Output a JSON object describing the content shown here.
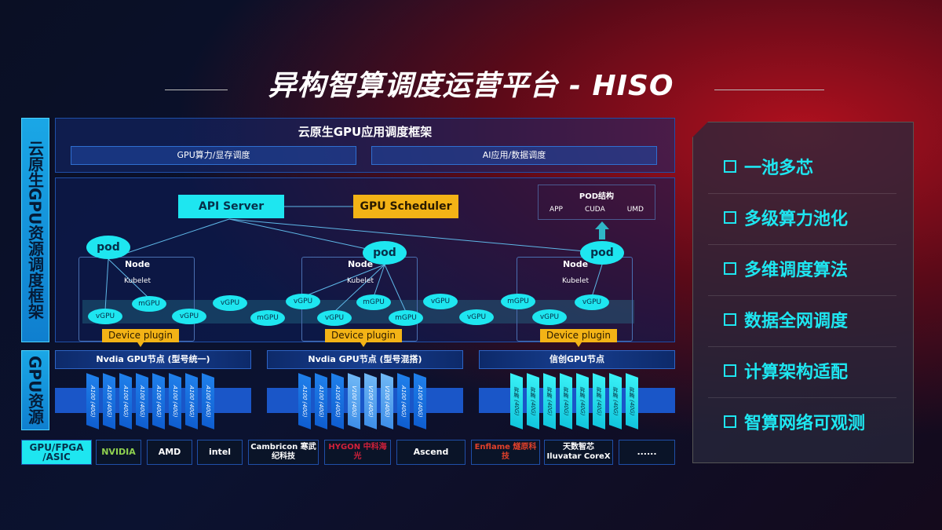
{
  "title": "异构智算调度运营平台 - HISO",
  "side_labels": {
    "top": "云原生GPU资源调度框架",
    "bottom": "GPU资源",
    "vendor": "GPU/FPGA /ASIC"
  },
  "framework": {
    "title": "云原生GPU应用调度框架",
    "bars": [
      "GPU算力/显存调度",
      "AI应用/数据调度"
    ]
  },
  "api_server": "API Server",
  "gpu_scheduler": "GPU Scheduler",
  "pod_structure": {
    "title": "POD结构",
    "items": [
      "APP",
      "CUDA",
      "UMD"
    ]
  },
  "pod_label": "pod",
  "node_label": "Node",
  "kubelet_label": "Kubelet",
  "device_plugin": "Device plugin",
  "gpu_units": [
    "vGPU",
    "mGPU",
    "vGPU",
    "vGPU",
    "mGPU",
    "vGPU",
    "vGPU",
    "mGPU",
    "mGPU",
    "vGPU",
    "vGPU",
    "mGPU",
    "vGPU",
    "vGPU"
  ],
  "gpu_nodes": [
    {
      "title": "Nvdia GPU节点 (型号统一)",
      "cards": [
        "A100 (40G)",
        "A100 (40G)",
        "A100 (40G)",
        "A100 (40G)",
        "A100 (40G)",
        "A100 (40G)",
        "A100 (40G)",
        "A100 (40G)"
      ]
    },
    {
      "title": "Nvdia GPU节点 (型号混搭)",
      "cards": [
        "A100 (40G)",
        "A100 (40G)",
        "A100 (40G)",
        "V100 (40G)",
        "V100 (40G)",
        "V100 (40G)",
        "A100 (40G)",
        "A100 (40G)"
      ]
    },
    {
      "title": "信创GPU节点",
      "cards": [
        "昇腾 (40G)",
        "昇腾 (40G)",
        "昇腾 (40G)",
        "昇腾 (40G)",
        "昇腾 (40G)",
        "昇腾 (40G)",
        "昇腾 (40G)",
        "昇腾 (40G)"
      ]
    }
  ],
  "vendors": [
    "NVIDIA",
    "AMD",
    "intel",
    "Cambricon 寒武纪科技",
    "HYGON 中科海光",
    "Ascend",
    "Enflame 燧原科技",
    "天数智芯 Iluvatar CoreX",
    "......"
  ],
  "features": [
    "一池多芯",
    "多级算力池化",
    "多维调度算法",
    "数据全网调度",
    "计算架构适配",
    "智算网络可观测"
  ],
  "colors": {
    "cyan": "#1ee6f0",
    "yellow": "#f3b316",
    "blue": "#1a56c8",
    "red": "#b0101e"
  }
}
